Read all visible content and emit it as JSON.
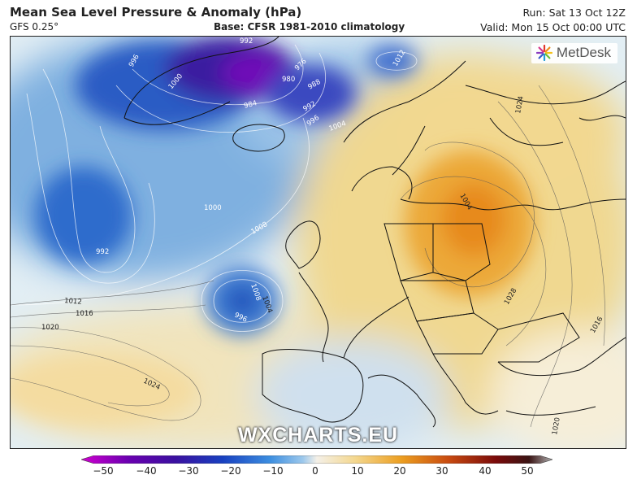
{
  "header": {
    "title": "Mean Sea Level Pressure & Anomaly (hPa)",
    "model": "GFS 0.25°",
    "base": "Base: CFSR 1981-2010 climatology",
    "run": "Run: Sat 13 Oct 12Z",
    "valid": "Valid: Mon 15 Oct 00:00 UTC"
  },
  "map": {
    "logo_icon": "metdesk-starburst-icon",
    "logo_text": "MetDesk",
    "watermark": "WXCHARTS.EU",
    "isobar_labels": [
      "992",
      "996",
      "976",
      "980",
      "984",
      "988",
      "992",
      "996",
      "1004",
      "1000",
      "1008",
      "1000",
      "992",
      "1012",
      "1016",
      "1020",
      "1024",
      "1004",
      "1008",
      "996",
      "1004",
      "1028",
      "1024",
      "1020",
      "1016",
      "1012"
    ]
  },
  "colorbar": {
    "ticks": [
      "−50",
      "−40",
      "−30",
      "−20",
      "−10",
      "0",
      "10",
      "20",
      "30",
      "40",
      "50"
    ],
    "colors": [
      "#d000d0",
      "#6a00b0",
      "#3a10a0",
      "#1840c0",
      "#3c8ee0",
      "#9cc8ec",
      "#f4f0e8",
      "#f4d890",
      "#ec9e20",
      "#c84a10",
      "#7a0a0a",
      "#3a1414",
      "#b0b0b0"
    ]
  }
}
